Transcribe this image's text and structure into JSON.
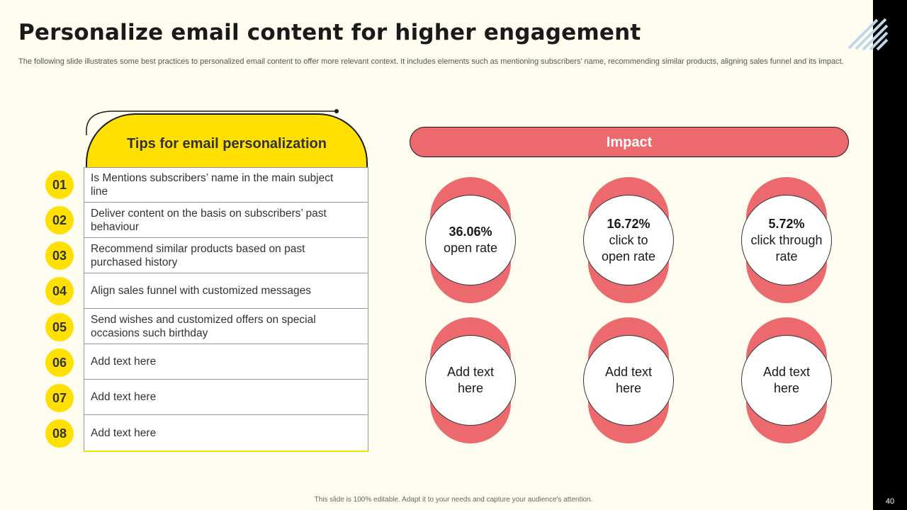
{
  "title": "Personalize email content for higher engagement",
  "subtitle": "The following slide illustrates some best practices to personalized email content to offer more relevant context. It includes elements such as mentioning subscribers’ name, recommending similar products, aligning sales funnel and its impact.",
  "tips": {
    "header": "Tips for email personalization",
    "items": [
      {
        "num": "01",
        "text": "Is Mentions subscribers’ name in the main subject line"
      },
      {
        "num": "02",
        "text": "Deliver content on the basis on subscribers’ past behaviour"
      },
      {
        "num": "03",
        "text": "Recommend similar products based on past purchased history"
      },
      {
        "num": "04",
        "text": "Align sales funnel with customized messages"
      },
      {
        "num": "05",
        "text": "Send wishes and customized offers on special occasions such birthday"
      },
      {
        "num": "06",
        "text": "Add text here"
      },
      {
        "num": "07",
        "text": "Add text here"
      },
      {
        "num": "08",
        "text": "Add text here"
      }
    ]
  },
  "impact": {
    "header": "Impact",
    "metrics": [
      {
        "value": "36.06%",
        "label": "open rate"
      },
      {
        "value": "16.72%",
        "label": "click to open rate"
      },
      {
        "value": "5.72%",
        "label": "click through rate"
      },
      {
        "value": "",
        "label": "Add text here"
      },
      {
        "value": "",
        "label": "Add text here"
      },
      {
        "value": "",
        "label": "Add text here"
      }
    ]
  },
  "footer": "This slide is 100% editable. Adapt it to your needs and capture your audience's attention.",
  "page_number": "40",
  "colors": {
    "accent_yellow": "#FFE000",
    "accent_red": "#EC6A6E",
    "background": "#FFFDF0",
    "dark": "#1A1A1A"
  }
}
